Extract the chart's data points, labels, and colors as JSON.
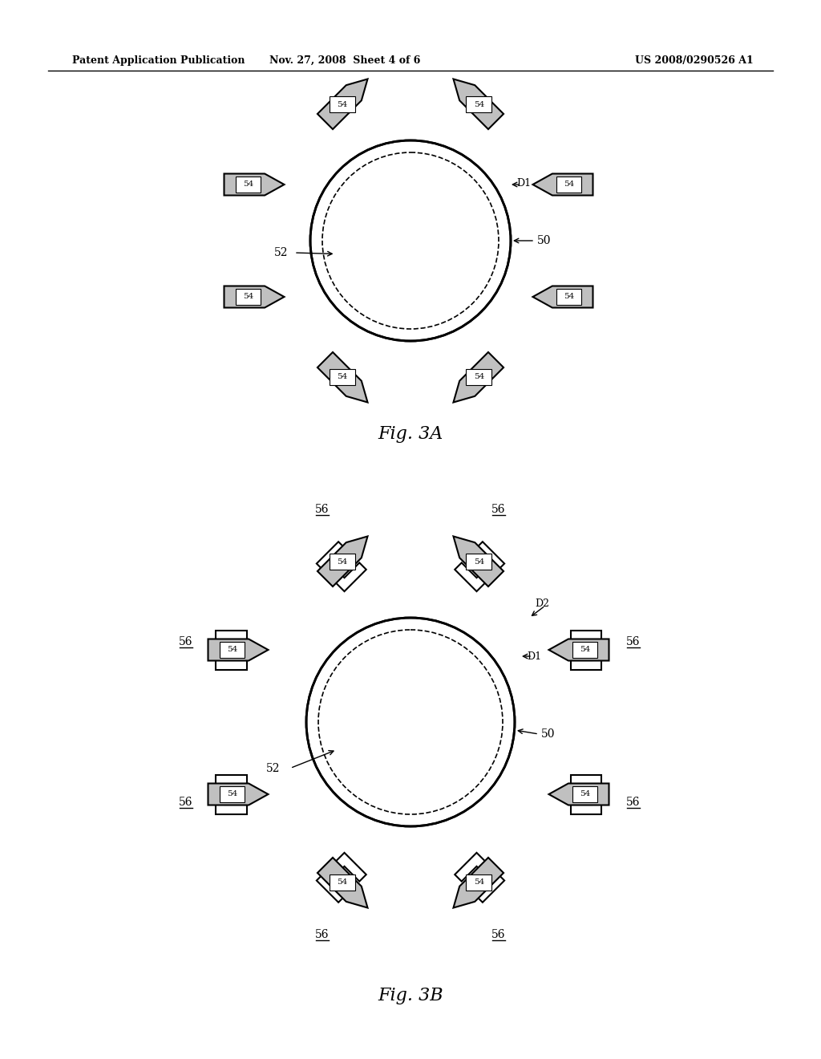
{
  "header_left": "Patent Application Publication",
  "header_mid": "Nov. 27, 2008  Sheet 4 of 6",
  "header_right": "US 2008/0290526 A1",
  "fig3A_title": "Fig. 3A",
  "fig3B_title": "Fig. 3B",
  "bg_color": "#ffffff",
  "line_color": "#000000",
  "hatch_color": "#888888",
  "label_54": "54",
  "label_52": "52",
  "label_50": "50",
  "label_D1_A": "D1",
  "label_56": "56",
  "label_D1_B": "D1",
  "label_D2_B": "D2"
}
